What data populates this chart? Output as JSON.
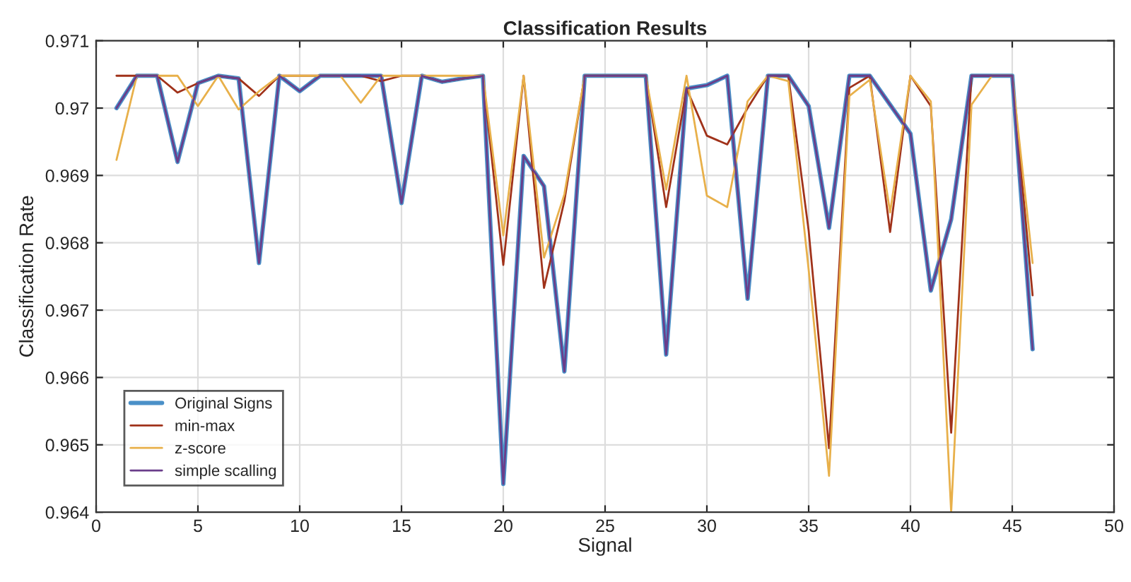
{
  "chart_data": {
    "type": "line",
    "title": "Classification Results",
    "xlabel": "Signal",
    "ylabel": "Classification Rate",
    "x": [
      1,
      2,
      3,
      4,
      5,
      6,
      7,
      8,
      9,
      10,
      11,
      12,
      13,
      14,
      15,
      16,
      17,
      18,
      19,
      20,
      21,
      22,
      23,
      24,
      25,
      26,
      27,
      28,
      29,
      30,
      31,
      32,
      33,
      34,
      35,
      36,
      37,
      38,
      39,
      40,
      41,
      42,
      43,
      44,
      45,
      46
    ],
    "series": [
      {
        "name": "Original Signs",
        "color": "#4a90c8",
        "values": [
          0.97,
          0.97048,
          0.97048,
          0.9692,
          0.97037,
          0.97048,
          0.97044,
          0.9677,
          0.97048,
          0.97025,
          0.97048,
          0.97048,
          0.97048,
          0.97048,
          0.96859,
          0.97048,
          0.97039,
          0.97044,
          0.97048,
          0.96442,
          0.96929,
          0.96884,
          0.96609,
          0.97048,
          0.97048,
          0.97048,
          0.97048,
          0.96634,
          0.97029,
          0.97034,
          0.97048,
          0.96717,
          0.97048,
          0.97048,
          0.97003,
          0.96822,
          0.97048,
          0.97048,
          0.97005,
          0.96962,
          0.96729,
          0.96835,
          0.97048,
          0.97048,
          0.97048,
          0.96642
        ]
      },
      {
        "name": "min-max",
        "color": "#a0321a",
        "values": [
          0.97048,
          0.97048,
          0.97048,
          0.97023,
          0.97037,
          0.97048,
          0.97044,
          0.97018,
          0.97048,
          0.97048,
          0.97048,
          0.97048,
          0.97048,
          0.9704,
          0.97048,
          0.97048,
          0.97039,
          0.97044,
          0.97048,
          0.96767,
          0.97048,
          0.96733,
          0.96862,
          0.97048,
          0.97048,
          0.97048,
          0.97048,
          0.96853,
          0.97029,
          0.96959,
          0.96946,
          0.97,
          0.97048,
          0.97048,
          0.96818,
          0.96495,
          0.9703,
          0.97048,
          0.96816,
          0.97048,
          0.97003,
          0.96518,
          0.97048,
          0.97048,
          0.97048,
          0.96722
        ]
      },
      {
        "name": "z-score",
        "color": "#e8b04a",
        "values": [
          0.96923,
          0.97048,
          0.97048,
          0.97048,
          0.97003,
          0.97048,
          0.96998,
          0.97025,
          0.97048,
          0.97048,
          0.97048,
          0.97048,
          0.97008,
          0.97048,
          0.97048,
          0.97048,
          0.97048,
          0.97048,
          0.97048,
          0.96811,
          0.97048,
          0.96778,
          0.96872,
          0.97048,
          0.97048,
          0.97048,
          0.97048,
          0.96879,
          0.97048,
          0.9687,
          0.96853,
          0.9701,
          0.97048,
          0.9704,
          0.9676,
          0.96454,
          0.97018,
          0.97042,
          0.96845,
          0.97048,
          0.9701,
          0.964,
          0.97005,
          0.97048,
          0.97048,
          0.9677
        ]
      },
      {
        "name": "simple scalling",
        "color": "#6a3d8a",
        "values": [
          0.97,
          0.97048,
          0.97048,
          0.9692,
          0.97037,
          0.97048,
          0.97044,
          0.9677,
          0.97048,
          0.97025,
          0.97048,
          0.97048,
          0.97048,
          0.97048,
          0.96859,
          0.97048,
          0.97039,
          0.97044,
          0.97048,
          0.96442,
          0.96929,
          0.96884,
          0.96609,
          0.97048,
          0.97048,
          0.97048,
          0.97048,
          0.96634,
          0.97029,
          0.97034,
          0.97048,
          0.96717,
          0.97048,
          0.97048,
          0.97003,
          0.96822,
          0.97048,
          0.97048,
          0.97005,
          0.96962,
          0.96729,
          0.96835,
          0.97048,
          0.97048,
          0.97048,
          0.96642
        ]
      }
    ],
    "xlim": [
      0,
      50
    ],
    "xticks": [
      0,
      5,
      10,
      15,
      20,
      25,
      30,
      35,
      40,
      45,
      50
    ],
    "ylim": [
      0.964,
      0.971
    ],
    "yticks": [
      0.964,
      0.965,
      0.966,
      0.967,
      0.968,
      0.969,
      0.97,
      0.971
    ],
    "grid": true,
    "legend": "bottom left",
    "marker": "none",
    "line_style": "solid"
  }
}
